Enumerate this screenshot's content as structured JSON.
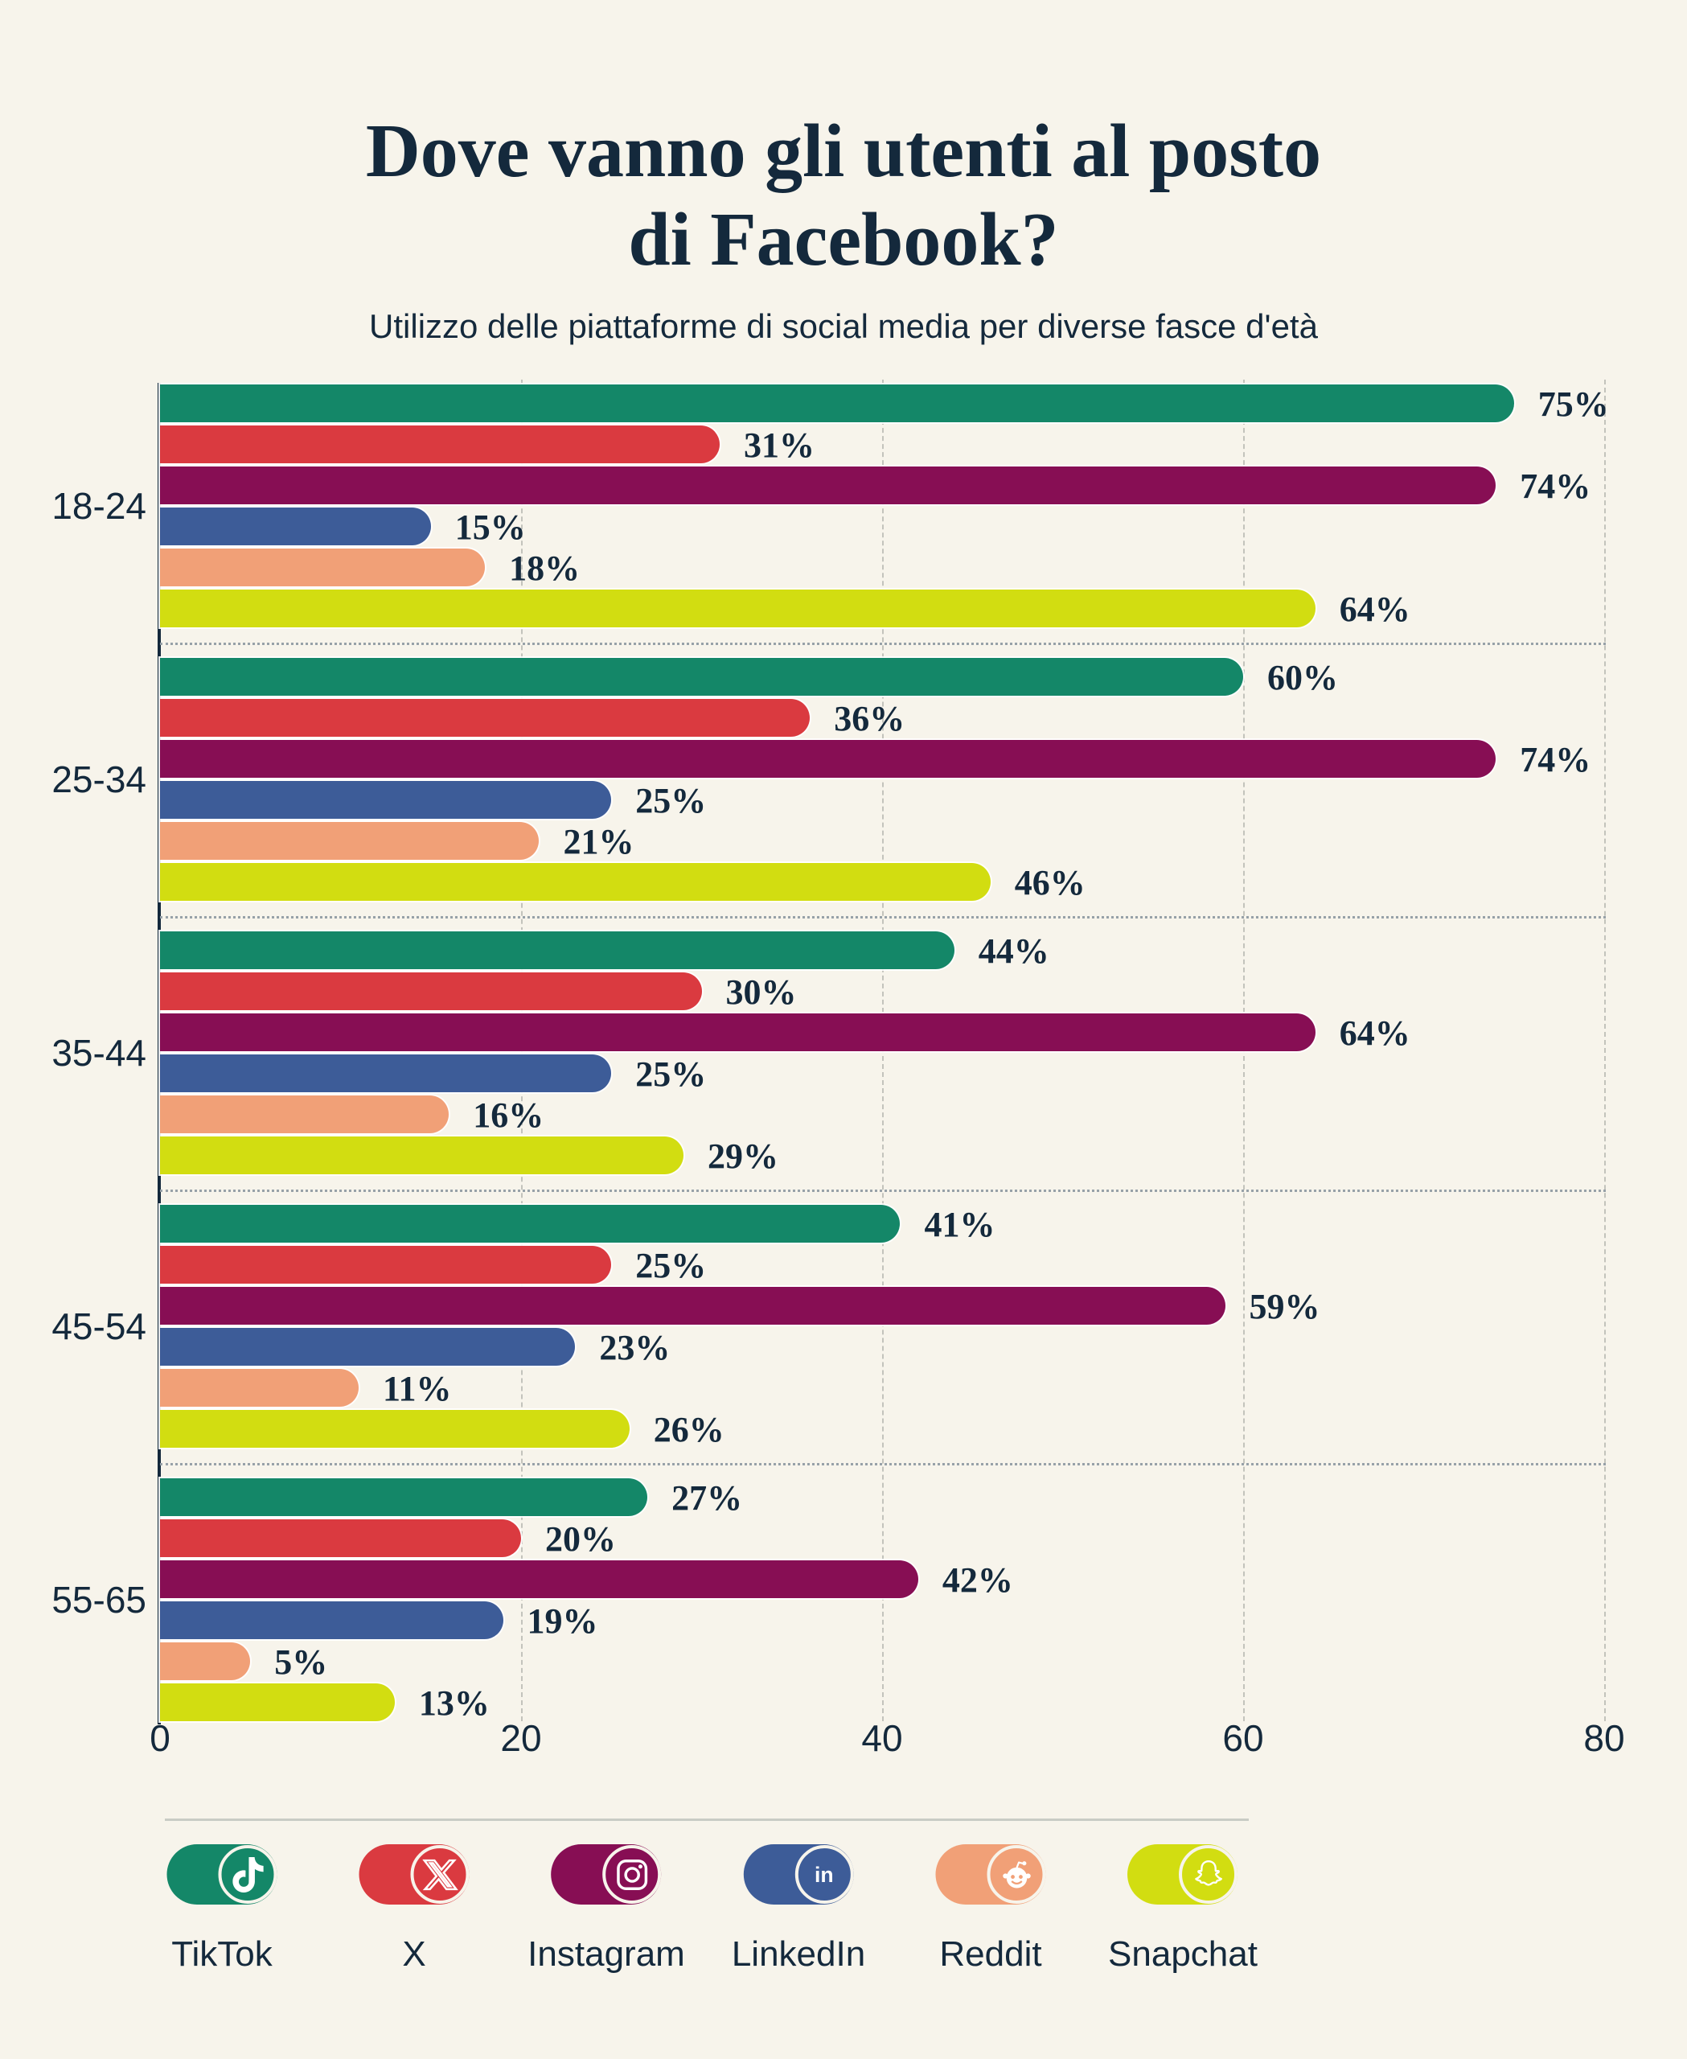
{
  "page": {
    "background_color": "#F7F4EB",
    "text_color": "#14293C"
  },
  "header": {
    "title_line1": "Dove vanno gli utenti al posto",
    "title_line2": "di Facebook?",
    "subtitle": "Utilizzo delle piattaforme di social media per diverse fasce d'età"
  },
  "chart_data": {
    "type": "bar",
    "orientation": "horizontal",
    "title": "Dove vanno gli utenti al posto di Facebook?",
    "subtitle": "Utilizzo delle piattaforme di social media per diverse fasce d'età",
    "categories": [
      "18-24",
      "25-34",
      "35-44",
      "45-54",
      "55-65"
    ],
    "series": [
      {
        "id": "tiktok",
        "name": "TikTok",
        "icon": "tiktok-icon",
        "color": "#148768",
        "values": [
          75,
          60,
          44,
          41,
          27
        ]
      },
      {
        "id": "x",
        "name": "X",
        "icon": "x-icon",
        "color": "#DA3A40",
        "values": [
          31,
          36,
          30,
          25,
          20
        ]
      },
      {
        "id": "instagram",
        "name": "Instagram",
        "icon": "instagram-icon",
        "color": "#870E54",
        "values": [
          74,
          74,
          64,
          59,
          42
        ]
      },
      {
        "id": "linkedin",
        "name": "LinkedIn",
        "icon": "linkedin-icon",
        "color": "#3D5C98",
        "values": [
          15,
          25,
          25,
          23,
          19
        ]
      },
      {
        "id": "reddit",
        "name": "Reddit",
        "icon": "reddit-icon",
        "color": "#F1A077",
        "values": [
          18,
          21,
          16,
          11,
          5
        ]
      },
      {
        "id": "snapchat",
        "name": "Snapchat",
        "icon": "snapchat-icon",
        "color": "#D2DD11",
        "values": [
          64,
          46,
          29,
          26,
          13
        ]
      }
    ],
    "value_suffix": "%",
    "xlim": [
      0,
      80
    ],
    "x_ticks": [
      "0",
      "20",
      "40",
      "60",
      "80"
    ],
    "grid": "vertical-dashed",
    "legend_position": "bottom"
  }
}
